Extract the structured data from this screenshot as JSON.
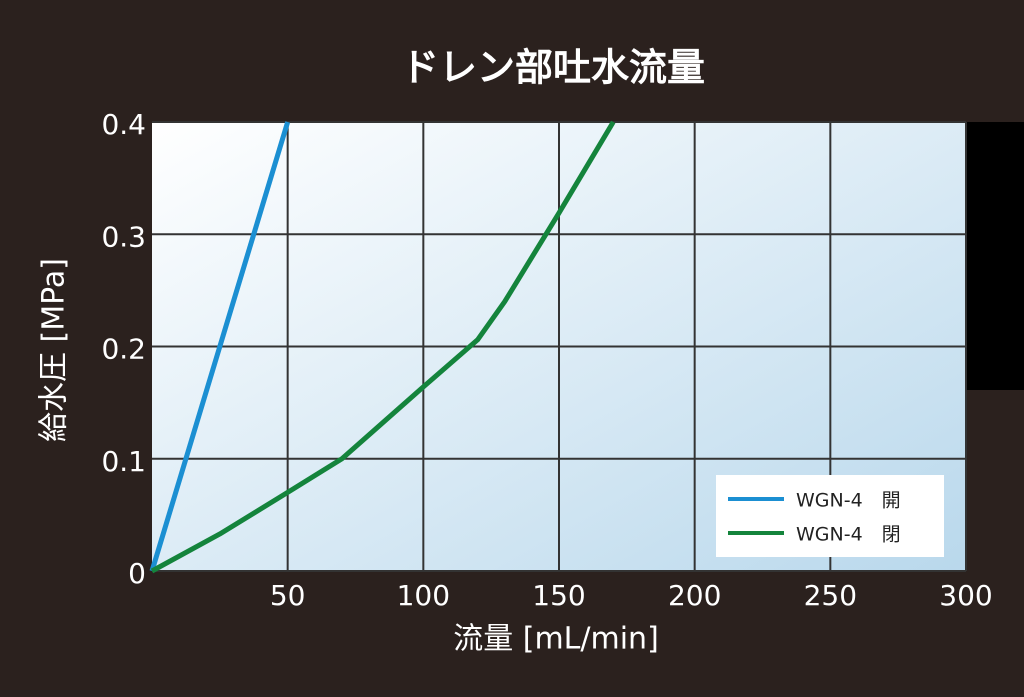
{
  "chart_data": {
    "type": "line",
    "title": "ドレン部吐水流量",
    "x_label": "流量 [mL/min]",
    "y_label": "給水圧 [MPa]",
    "xlim": [
      0,
      300
    ],
    "xticks": [
      50,
      100,
      150,
      200,
      250,
      300
    ],
    "ylim": [
      0,
      0.4
    ],
    "yticks": [
      0,
      0.1,
      0.2,
      0.3,
      0.4
    ],
    "grid": true,
    "legend": "lower right",
    "series": [
      {
        "name": "WGN-4　開",
        "color": "#1b8fd2",
        "x": [
          0,
          50
        ],
        "values": [
          0,
          0.4
        ]
      },
      {
        "name": "WGN-4　閉",
        "color": "#14843c",
        "x": [
          0,
          25,
          50,
          70,
          100,
          120,
          130,
          150,
          170
        ],
        "values": [
          0,
          0.033,
          0.07,
          0.1,
          0.164,
          0.206,
          0.24,
          0.319,
          0.4
        ]
      }
    ]
  }
}
